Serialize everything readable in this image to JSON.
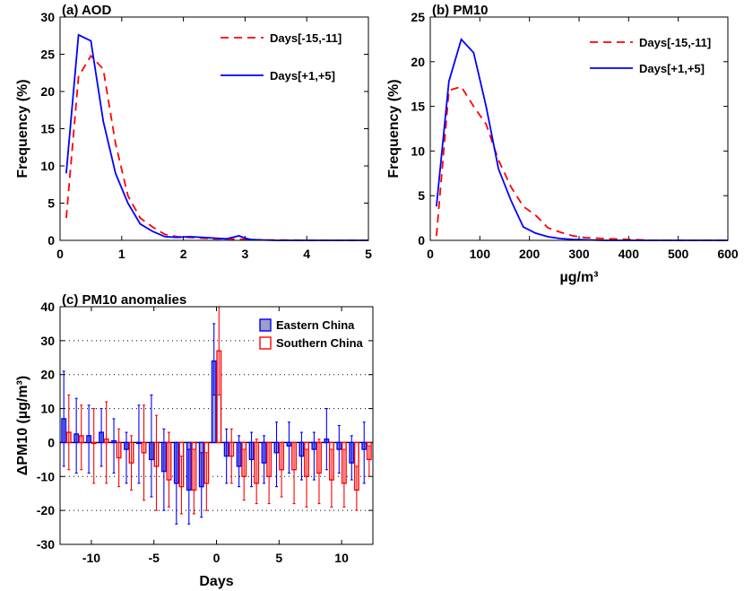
{
  "chart_data": [
    {
      "type": "line",
      "title": "(a) AOD",
      "xlabel": "",
      "ylabel": "Frequency (%)",
      "xlim": [
        0,
        5
      ],
      "ylim": [
        0,
        30
      ],
      "xticks": [
        0,
        1,
        2,
        3,
        4,
        5
      ],
      "yticks": [
        0,
        5,
        10,
        15,
        20,
        25,
        30
      ],
      "legend_position": "top-right",
      "series": [
        {
          "name": "Days[-15,-11]",
          "color": "#ff0000",
          "dash": "dashed",
          "x": [
            0.1,
            0.3,
            0.5,
            0.7,
            0.9,
            1.1,
            1.3,
            1.5,
            1.7,
            1.9,
            2.1,
            2.3,
            2.5,
            2.7,
            2.9,
            3.1,
            3.3,
            3.5,
            4.0,
            4.5,
            5.0
          ],
          "y": [
            3,
            22,
            24.8,
            23,
            13,
            6,
            3,
            1.8,
            0.8,
            0.5,
            0.4,
            0.3,
            0.2,
            0.2,
            0.15,
            0.1,
            0.05,
            0.05,
            0,
            0,
            0
          ]
        },
        {
          "name": "Days[+1,+5]",
          "color": "#0000ff",
          "dash": "solid",
          "x": [
            0.1,
            0.3,
            0.5,
            0.7,
            0.9,
            1.1,
            1.3,
            1.5,
            1.7,
            1.9,
            2.1,
            2.3,
            2.5,
            2.7,
            2.9,
            3.0,
            3.1,
            3.3,
            3.5,
            4.0,
            4.5,
            5.0
          ],
          "y": [
            9,
            27.6,
            26.8,
            16,
            9,
            5,
            2.2,
            1.2,
            0.5,
            0.4,
            0.5,
            0.4,
            0.3,
            0.2,
            0.6,
            0.3,
            0.1,
            0.05,
            0,
            0,
            0,
            0
          ]
        }
      ]
    },
    {
      "type": "line",
      "title": "(b) PM10",
      "xlabel": "µg/m³",
      "ylabel": "Frequency (%)",
      "xlim": [
        0,
        600
      ],
      "ylim": [
        0,
        25
      ],
      "xticks": [
        0,
        100,
        200,
        300,
        400,
        500,
        600
      ],
      "yticks": [
        0,
        5,
        10,
        15,
        20,
        25
      ],
      "legend_position": "top-right",
      "series": [
        {
          "name": "Days[-15,-11]",
          "color": "#ff0000",
          "dash": "dashed",
          "x": [
            12.5,
            37.5,
            62.5,
            87.5,
            112.5,
            137.5,
            162.5,
            187.5,
            212.5,
            237.5,
            262.5,
            287.5,
            312.5,
            350,
            400,
            450,
            500,
            600
          ],
          "y": [
            0.5,
            16.8,
            17.2,
            15,
            13,
            9,
            6,
            3.8,
            2.8,
            1.4,
            0.9,
            0.5,
            0.3,
            0.2,
            0.1,
            0,
            0,
            0
          ]
        },
        {
          "name": "Days[+1,+5]",
          "color": "#0000ff",
          "dash": "solid",
          "x": [
            12.5,
            37.5,
            62.5,
            87.5,
            112.5,
            137.5,
            162.5,
            187.5,
            212.5,
            237.5,
            262.5,
            287.5,
            350,
            400,
            500,
            600
          ],
          "y": [
            3.8,
            17.8,
            22.5,
            21,
            15,
            8,
            4.5,
            1.5,
            0.8,
            0.4,
            0.2,
            0.1,
            0,
            0,
            0,
            0
          ]
        }
      ]
    },
    {
      "type": "bar",
      "title": "(c) PM10 anomalies",
      "xlabel": "Days",
      "ylabel": "ΔPM10 (µg/m³)",
      "xlim": [
        -12.5,
        12.5
      ],
      "ylim": [
        -30,
        40
      ],
      "xticks": [
        -10,
        -5,
        0,
        5,
        10
      ],
      "yticks": [
        -30,
        -20,
        -10,
        0,
        10,
        20,
        30,
        40
      ],
      "grid": true,
      "legend_position": "top-right",
      "days": [
        -12,
        -11,
        -10,
        -9,
        -8,
        -7,
        -6,
        -5,
        -4,
        -3,
        -2,
        -1,
        0,
        1,
        2,
        3,
        4,
        5,
        6,
        7,
        8,
        9,
        10,
        11,
        12
      ],
      "series": [
        {
          "name": "Eastern China",
          "color": "#0000ff",
          "values": [
            7,
            2.5,
            2,
            3,
            0.5,
            -2,
            0,
            -5,
            -8.5,
            -12,
            -14,
            -13,
            24,
            -4,
            -7,
            -5,
            -6,
            -3,
            -1,
            -4,
            -2,
            1,
            -2,
            -6,
            -2
          ],
          "error_low": [
            -7,
            -9,
            -9,
            -7,
            -9,
            -12,
            -12,
            -16,
            -20,
            -24,
            -24,
            -22,
            14,
            -12,
            -13,
            -13,
            -12,
            -13,
            -9,
            -11,
            -11,
            -8,
            -9,
            -11,
            -12
          ],
          "error_high": [
            21,
            13,
            11,
            10,
            7,
            3,
            11,
            14,
            4,
            0,
            -2,
            -3,
            35,
            4,
            2,
            3,
            2,
            6,
            6,
            3,
            3,
            10,
            5,
            2,
            6
          ]
        },
        {
          "name": "Southern China",
          "color": "#ff0000",
          "values": [
            3,
            2,
            0,
            1,
            -4.5,
            -6,
            -3,
            -7,
            -11,
            -13,
            -14,
            -12,
            27,
            -4,
            -10,
            -12,
            -10,
            -8,
            -8,
            -10,
            -9,
            -11,
            -12,
            -14,
            -5
          ],
          "error_low": [
            -8,
            -8,
            -12,
            -12,
            -13,
            -14,
            -17,
            -20,
            -19,
            -21,
            -21,
            -20,
            14,
            -12,
            -17,
            -18,
            -18,
            -16,
            -18,
            -19,
            -18,
            -19,
            -19,
            -20,
            -10
          ],
          "error_high": [
            14,
            11,
            10,
            12,
            4,
            2,
            11,
            8,
            3,
            -4,
            -2,
            -3,
            40,
            4,
            -2,
            1,
            0,
            0,
            0,
            -2,
            1,
            -2,
            -2,
            -7,
            -1
          ]
        }
      ]
    }
  ]
}
